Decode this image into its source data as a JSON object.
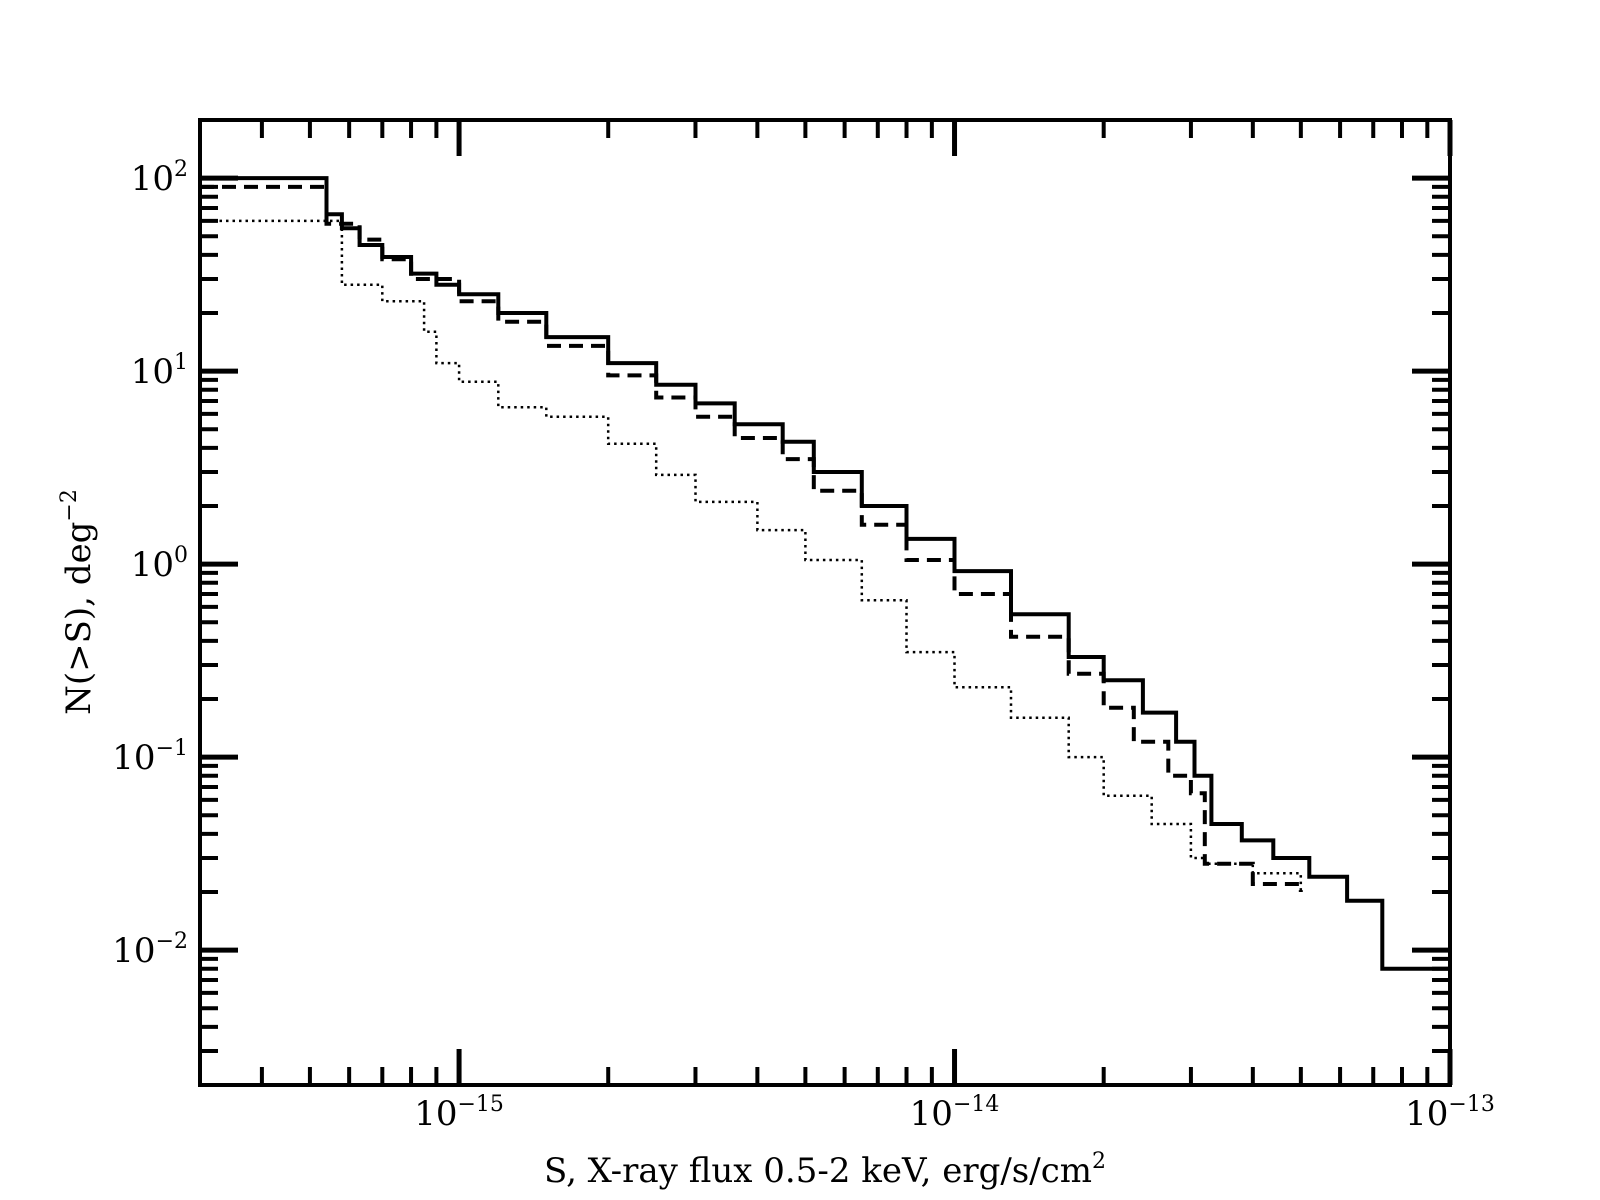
{
  "chart_data": {
    "type": "line",
    "xscale": "log",
    "yscale": "log",
    "xlim": [
      3e-16,
      1e-13
    ],
    "ylim": [
      0.002,
      200
    ],
    "grid": false,
    "x_ticks": [
      {
        "base": "10",
        "exp": "−15",
        "value": 1e-15
      },
      {
        "base": "10",
        "exp": "−14",
        "value": 1e-14
      },
      {
        "base": "10",
        "exp": "−13",
        "value": 1e-13
      }
    ],
    "y_ticks": [
      {
        "base": "10",
        "exp": "2",
        "value": 100
      },
      {
        "base": "10",
        "exp": "1",
        "value": 10
      },
      {
        "base": "10",
        "exp": "0",
        "value": 1
      },
      {
        "base": "10",
        "exp": "−1",
        "value": 0.1
      },
      {
        "base": "10",
        "exp": "−2",
        "value": 0.01
      }
    ],
    "xlabel": {
      "main": "S, X-ray flux 0.5-2 keV, erg/s/cm",
      "sup": "2"
    },
    "ylabel": {
      "main": "N(>S), deg",
      "sup": "−2"
    },
    "series": [
      {
        "style": "solid",
        "x": [
          3e-16,
          5.4e-16,
          5.4e-16,
          5.8e-16,
          6.3e-16,
          7e-16,
          8e-16,
          9e-16,
          1e-15,
          1.2e-15,
          1.5e-15,
          2e-15,
          2.5e-15,
          3e-15,
          3.6e-15,
          4.5e-15,
          5.2e-15,
          6.5e-15,
          8e-15,
          1e-14,
          1.3e-14,
          1.7e-14,
          2e-14,
          2.4e-14,
          2.8e-14,
          3.05e-14,
          3.3e-14,
          3.8e-14,
          4.4e-14,
          5.2e-14,
          6.2e-14,
          7.3e-14,
          7.3e-14,
          1e-13
        ],
        "y": [
          100,
          100,
          65,
          55,
          45,
          39,
          32,
          28,
          25,
          20,
          15,
          11,
          8.5,
          6.8,
          5.3,
          4.3,
          3.0,
          2.0,
          1.35,
          0.92,
          0.55,
          0.33,
          0.25,
          0.17,
          0.12,
          0.08,
          0.045,
          0.037,
          0.03,
          0.024,
          0.018,
          0.016,
          0.008,
          0.008
        ]
      },
      {
        "style": "dashed",
        "x": [
          3e-16,
          5.4e-16,
          5.4e-16,
          6.3e-16,
          7e-16,
          8e-16,
          1e-15,
          1.2e-15,
          1.5e-15,
          2e-15,
          2.5e-15,
          3e-15,
          3.6e-15,
          4.5e-15,
          5.2e-15,
          6.5e-15,
          8e-15,
          1e-14,
          1.3e-14,
          1.7e-14,
          2e-14,
          2.3e-14,
          2.7e-14,
          3e-14,
          3.2e-14,
          3.2e-14,
          4e-14,
          5e-14
        ],
        "y": [
          90,
          90,
          58,
          48,
          38,
          30,
          23,
          18,
          13.5,
          9.5,
          7.3,
          5.8,
          4.5,
          3.5,
          2.4,
          1.6,
          1.05,
          0.7,
          0.42,
          0.27,
          0.18,
          0.12,
          0.08,
          0.065,
          0.065,
          0.028,
          0.022,
          0.02
        ]
      },
      {
        "style": "dotted",
        "x": [
          3e-16,
          5.8e-16,
          5.8e-16,
          7e-16,
          8.5e-16,
          9e-16,
          1e-15,
          1.2e-15,
          1.5e-15,
          2e-15,
          2.5e-15,
          3e-15,
          4e-15,
          5e-15,
          6.5e-15,
          8e-15,
          1e-14,
          1.3e-14,
          1.7e-14,
          2e-14,
          2.5e-14,
          3e-14,
          3.2e-14,
          4e-14,
          5e-14
        ],
        "y": [
          60,
          60,
          28,
          23,
          16,
          11,
          8.8,
          6.5,
          5.8,
          4.2,
          2.9,
          2.1,
          1.5,
          1.05,
          0.65,
          0.35,
          0.23,
          0.16,
          0.1,
          0.063,
          0.045,
          0.03,
          0.028,
          0.025,
          0.02
        ]
      }
    ]
  }
}
